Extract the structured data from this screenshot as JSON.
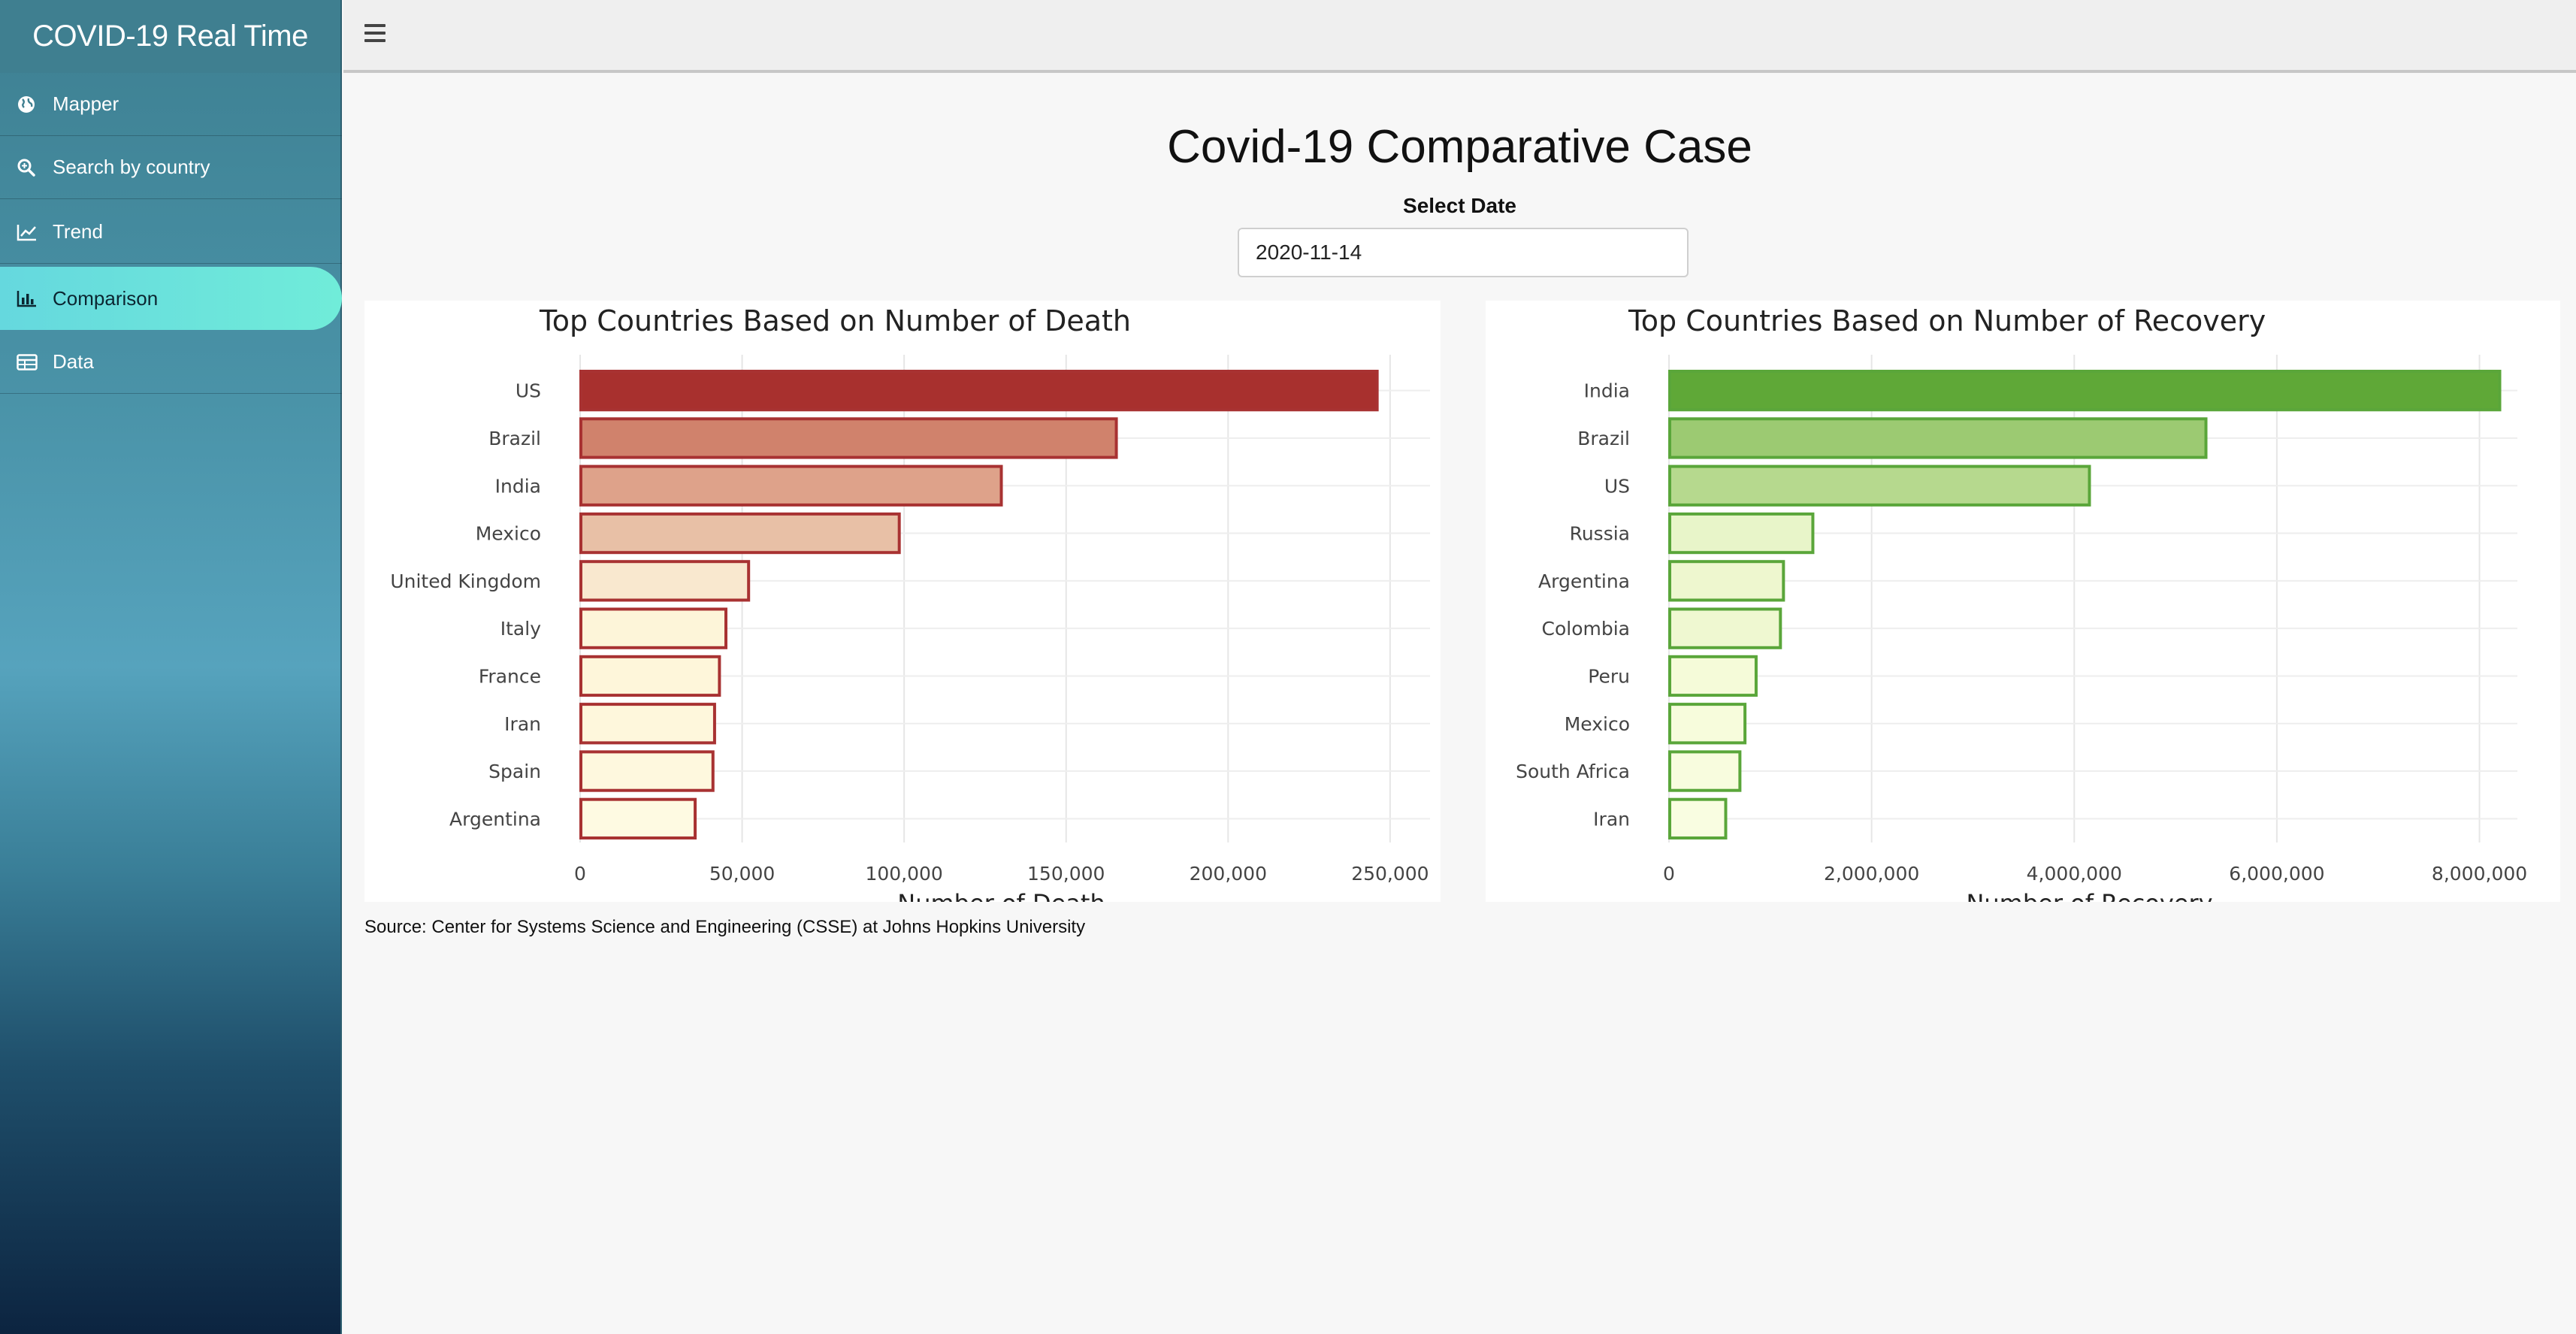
{
  "app": {
    "title": "COVID-19 Real Time"
  },
  "sidebar": {
    "items": [
      {
        "label": "Mapper",
        "icon": "globe-icon"
      },
      {
        "label": "Search by country",
        "icon": "search-icon"
      },
      {
        "label": "Trend",
        "icon": "line-chart-icon"
      },
      {
        "label": "Comparison",
        "icon": "bar-chart-icon",
        "active": true
      },
      {
        "label": "Data",
        "icon": "table-icon"
      }
    ]
  },
  "header": {
    "menu_icon": "hamburger-icon"
  },
  "main": {
    "title": "Covid-19 Comparative Case",
    "date_label": "Select Date",
    "date_value": "2020-11-14",
    "source": "Source: Center for Systems Science and Engineering (CSSE) at Johns Hopkins University"
  },
  "colors": {
    "active_menu": "#6fe6da",
    "death_border": "#a83232",
    "recovery_border": "#5aa63a"
  },
  "chart_data": [
    {
      "type": "bar",
      "orientation": "horizontal",
      "title": "Top Countries Based on Number of Death",
      "xlabel": "Number of Death",
      "ylabel": "",
      "categories": [
        "US",
        "Brazil",
        "India",
        "Mexico",
        "United Kingdom",
        "Italy",
        "France",
        "Iran",
        "Spain",
        "Argentina"
      ],
      "values": [
        246000,
        165500,
        130000,
        98500,
        52000,
        45000,
        43000,
        41500,
        41000,
        35500
      ],
      "colors": [
        "#a8302e",
        "#d0826c",
        "#dea28a",
        "#e8c0a6",
        "#f9e8cf",
        "#fdf5d9",
        "#fef6da",
        "#fef7dc",
        "#fef8de",
        "#fefae2"
      ],
      "xlim": [
        0,
        260000
      ],
      "xticks": [
        0,
        50000,
        100000,
        150000,
        200000,
        250000
      ],
      "xtick_labels": [
        "0",
        "50,000",
        "100,000",
        "150,000",
        "200,000",
        "250,000"
      ],
      "grid": true,
      "legend": "none"
    },
    {
      "type": "bar",
      "orientation": "horizontal",
      "title": "Top Countries Based on Number of Recovery",
      "xlabel": "Number of Recovery",
      "ylabel": "",
      "categories": [
        "India",
        "Brazil",
        "US",
        "Russia",
        "Argentina",
        "Colombia",
        "Peru",
        "Mexico",
        "South Africa",
        "Iran"
      ],
      "values": [
        8200000,
        5300000,
        4150000,
        1420000,
        1130000,
        1100000,
        860000,
        750000,
        700000,
        560000
      ],
      "colors": [
        "#5fa837",
        "#9cca72",
        "#b6d98e",
        "#e8f5c9",
        "#eef7cf",
        "#eff8d1",
        "#f5fbd9",
        "#f7fcdc",
        "#f8fcde",
        "#f9fde1"
      ],
      "xlim": [
        0,
        8300000
      ],
      "xticks": [
        0,
        2000000,
        4000000,
        6000000,
        8000000
      ],
      "xtick_labels": [
        "0",
        "2,000,000",
        "4,000,000",
        "6,000,000",
        "8,000,000"
      ],
      "grid": true,
      "legend": "none"
    }
  ]
}
